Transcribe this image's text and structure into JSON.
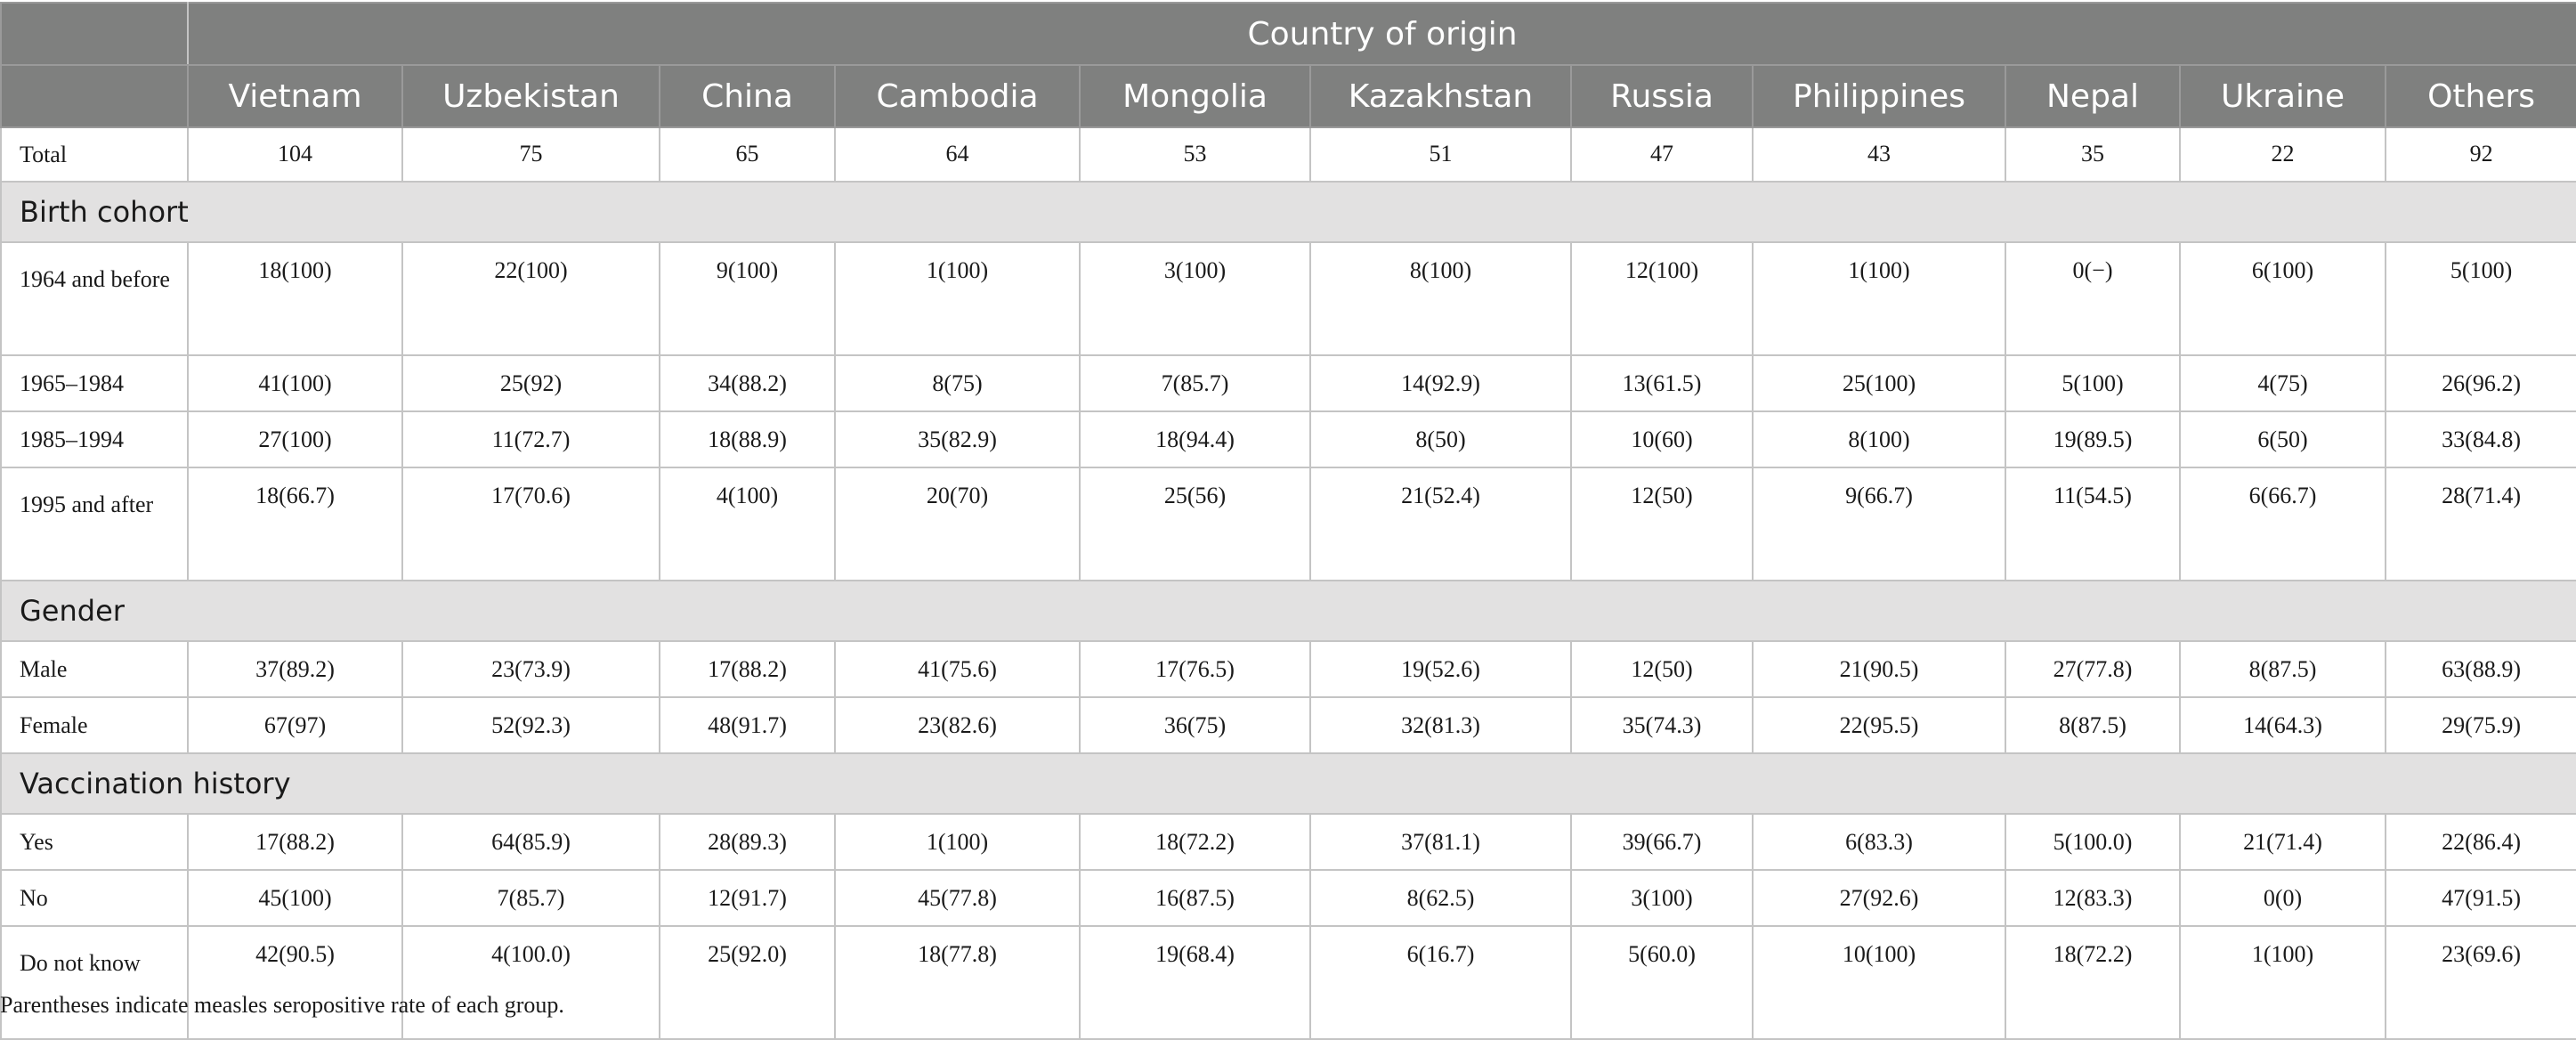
{
  "table": {
    "header_group": "Country of origin",
    "columns": [
      "Vietnam",
      "Uzbekistan",
      "China",
      "Cambodia",
      "Mongolia",
      "Kazakhstan",
      "Russia",
      "Philippines",
      "Nepal",
      "Ukraine",
      "Others"
    ],
    "total": {
      "label": "Total",
      "values": [
        "104",
        "75",
        "65",
        "64",
        "53",
        "51",
        "47",
        "43",
        "35",
        "22",
        "92"
      ]
    },
    "sections": [
      {
        "title": "Birth cohort",
        "rows": [
          {
            "label": "1964 and before",
            "values": [
              "18(100)",
              "22(100)",
              "9(100)",
              "1(100)",
              "3(100)",
              "8(100)",
              "12(100)",
              "1(100)",
              "0(−)",
              "6(100)",
              "5(100)"
            ]
          },
          {
            "label": "1965–1984",
            "values": [
              "41(100)",
              "25(92)",
              "34(88.2)",
              "8(75)",
              "7(85.7)",
              "14(92.9)",
              "13(61.5)",
              "25(100)",
              "5(100)",
              "4(75)",
              "26(96.2)"
            ]
          },
          {
            "label": "1985–1994",
            "values": [
              "27(100)",
              "11(72.7)",
              "18(88.9)",
              "35(82.9)",
              "18(94.4)",
              "8(50)",
              "10(60)",
              "8(100)",
              "19(89.5)",
              "6(50)",
              "33(84.8)"
            ]
          },
          {
            "label": "1995 and after",
            "values": [
              "18(66.7)",
              "17(70.6)",
              "4(100)",
              "20(70)",
              "25(56)",
              "21(52.4)",
              "12(50)",
              "9(66.7)",
              "11(54.5)",
              "6(66.7)",
              "28(71.4)"
            ]
          }
        ]
      },
      {
        "title": "Gender",
        "rows": [
          {
            "label": "Male",
            "values": [
              "37(89.2)",
              "23(73.9)",
              "17(88.2)",
              "41(75.6)",
              "17(76.5)",
              "19(52.6)",
              "12(50)",
              "21(90.5)",
              "27(77.8)",
              "8(87.5)",
              "63(88.9)"
            ]
          },
          {
            "label": "Female",
            "values": [
              "67(97)",
              "52(92.3)",
              "48(91.7)",
              "23(82.6)",
              "36(75)",
              "32(81.3)",
              "35(74.3)",
              "22(95.5)",
              "8(87.5)",
              "14(64.3)",
              "29(75.9)"
            ]
          }
        ]
      },
      {
        "title": "Vaccination history",
        "rows": [
          {
            "label": "Yes",
            "values": [
              "17(88.2)",
              "64(85.9)",
              "28(89.3)",
              "1(100)",
              "18(72.2)",
              "37(81.1)",
              "39(66.7)",
              "6(83.3)",
              "5(100.0)",
              "21(71.4)",
              "22(86.4)"
            ]
          },
          {
            "label": "No",
            "values": [
              "45(100)",
              "7(85.7)",
              "12(91.7)",
              "45(77.8)",
              "16(87.5)",
              "8(62.5)",
              "3(100)",
              "27(92.6)",
              "12(83.3)",
              "0(0)",
              "47(91.5)"
            ]
          },
          {
            "label": "Do not know",
            "values": [
              "42(90.5)",
              "4(100.0)",
              "25(92.0)",
              "18(77.8)",
              "19(68.4)",
              "6(16.7)",
              "5(60.0)",
              "10(100)",
              "18(72.2)",
              "1(100)",
              "23(69.6)"
            ]
          }
        ]
      }
    ],
    "footnote": "Parentheses indicate measles seropositive rate of each group."
  }
}
